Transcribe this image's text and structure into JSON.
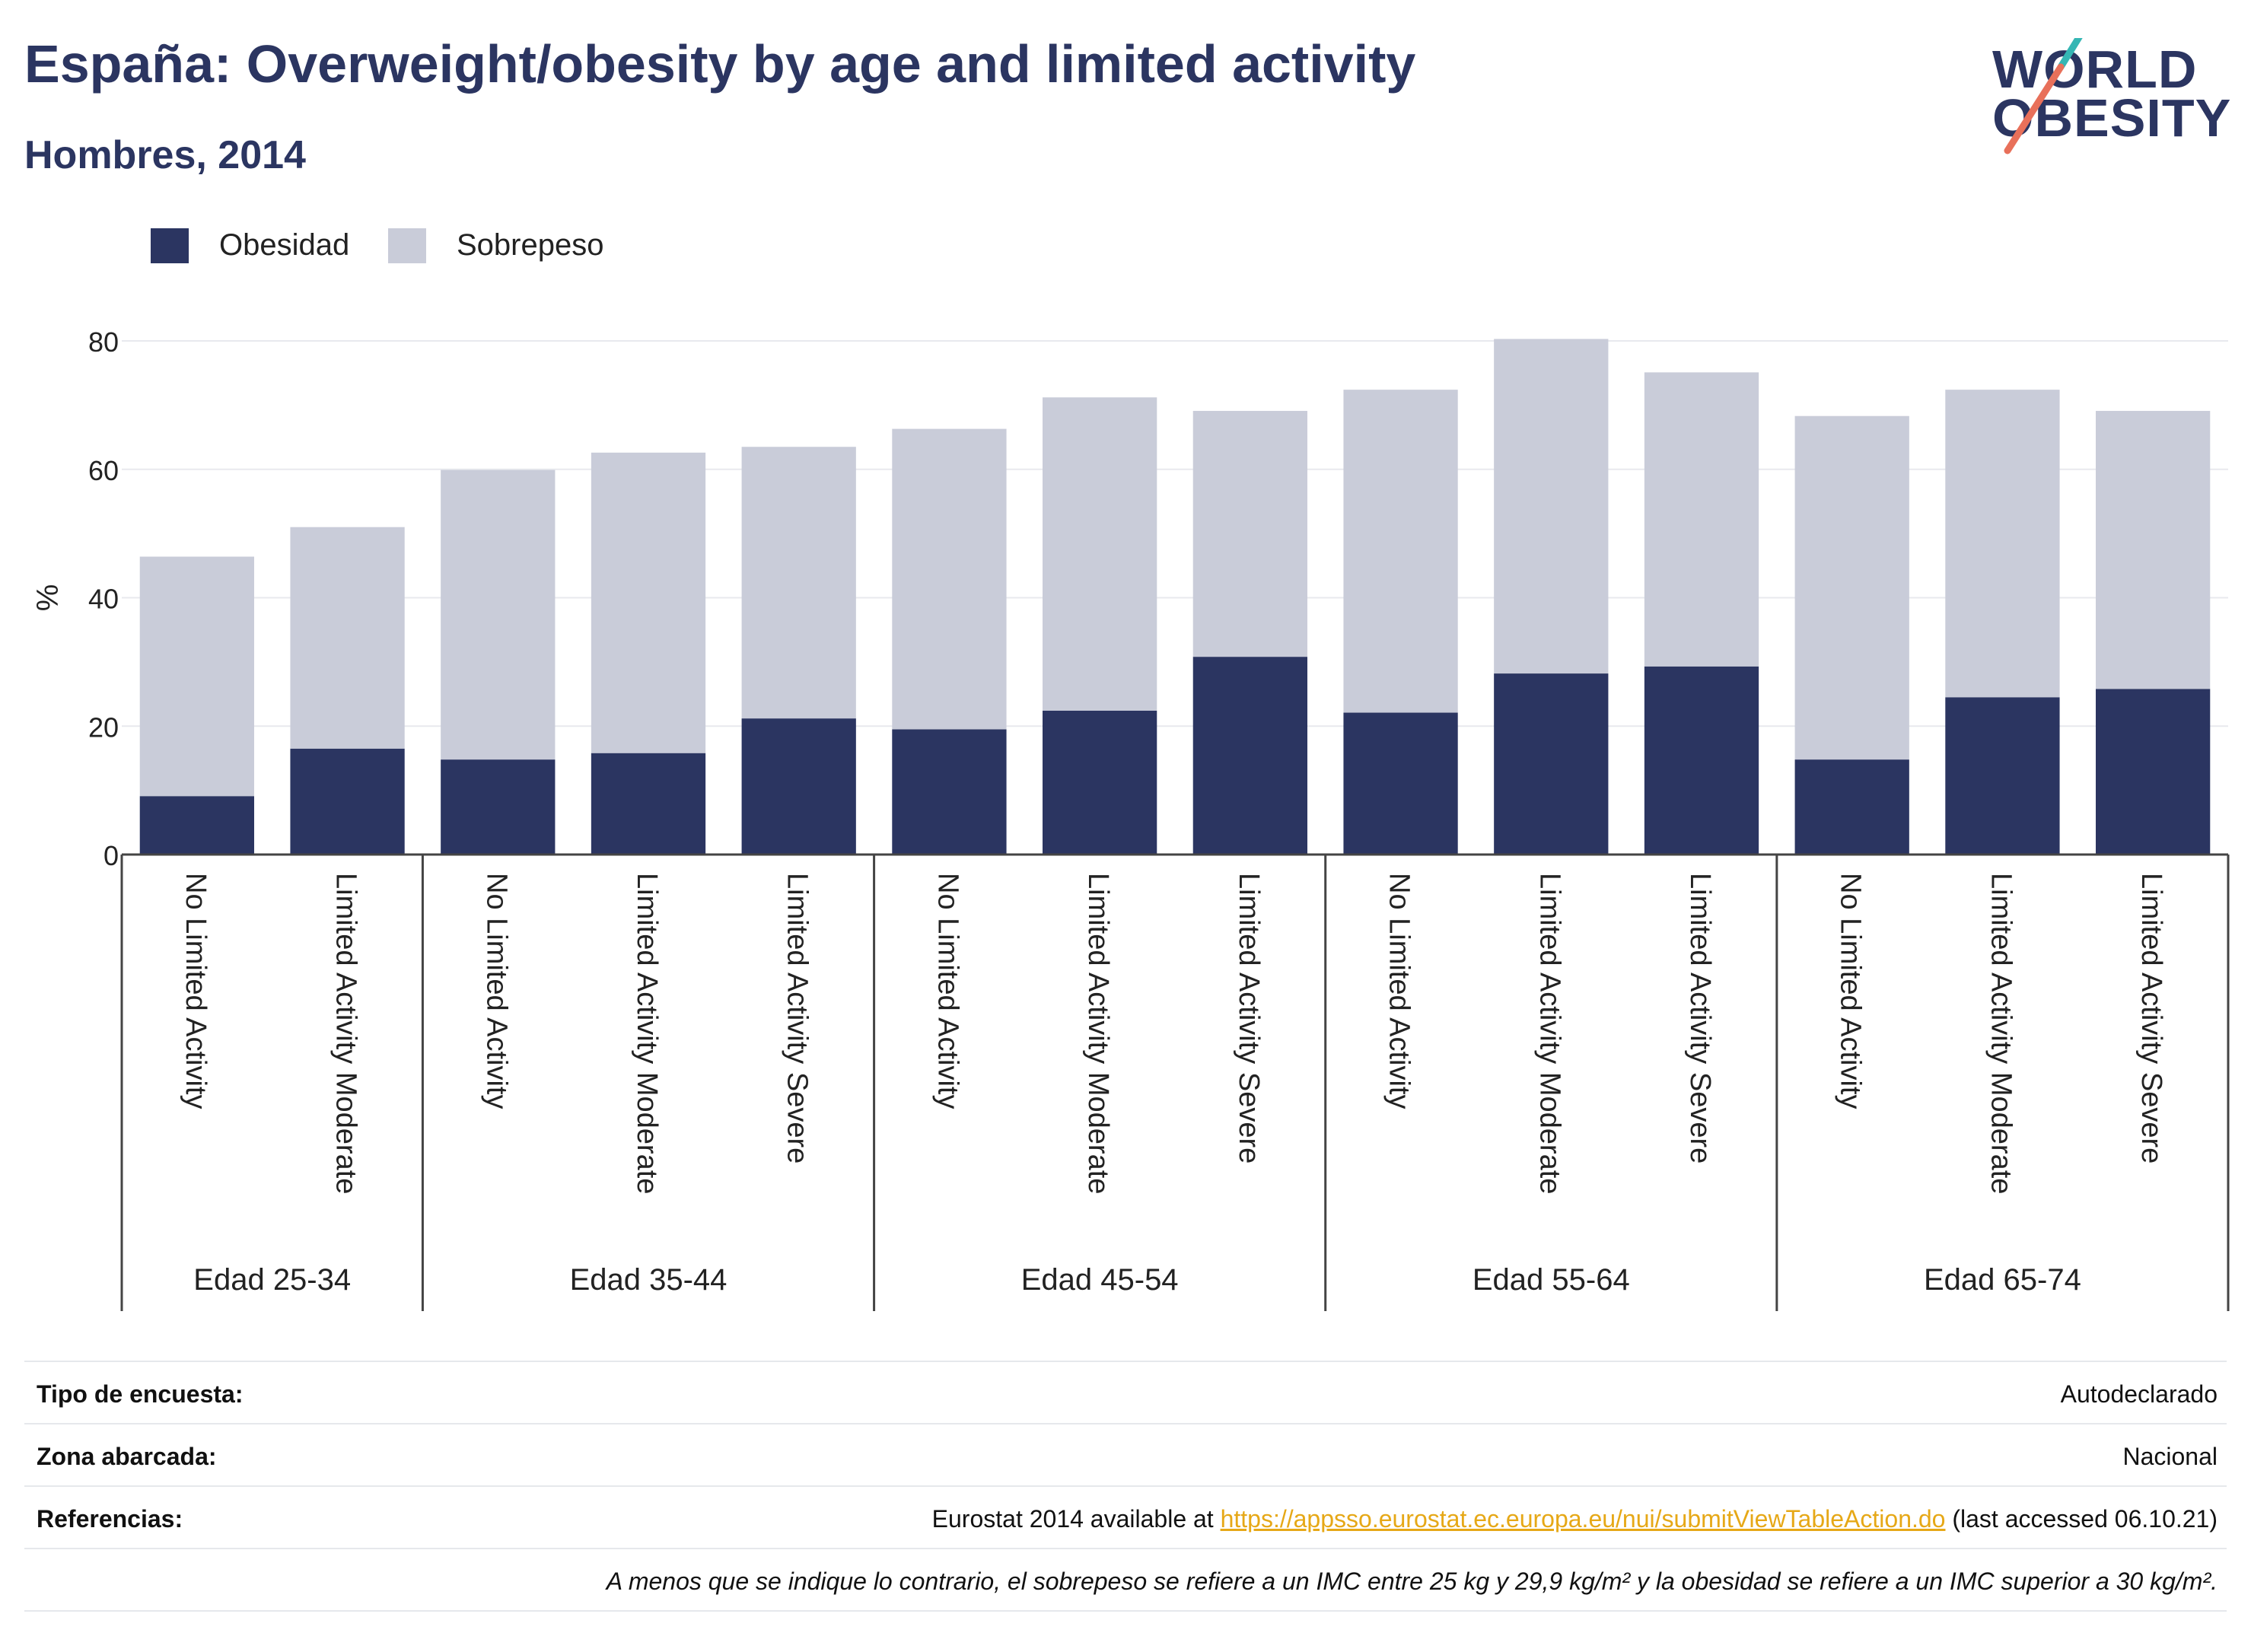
{
  "title": "España: Overweight/obesity by age and limited activity",
  "subtitle": "Hombres, 2014",
  "logo": {
    "line1": "WORLD",
    "line2": "OBESITY",
    "accent_colors": [
      "#35b6b4",
      "#e8705a"
    ]
  },
  "colors": {
    "obesity": "#2b3561",
    "overweight": "#c9ccd9",
    "text": "#2b3561",
    "link": "#e6a817"
  },
  "legend": [
    {
      "label": "Obesidad",
      "color": "#2b3561"
    },
    {
      "label": "Sobrepeso",
      "color": "#c9ccd9"
    }
  ],
  "chart_data": {
    "type": "bar",
    "stacked": true,
    "ylabel": "%",
    "ylim": [
      0,
      80
    ],
    "yticks": [
      0,
      20,
      40,
      60,
      80
    ],
    "grid": true,
    "legend_position": "top-left",
    "groups": [
      {
        "label": "Edad 25-34",
        "count": 2
      },
      {
        "label": "Edad 35-44",
        "count": 3
      },
      {
        "label": "Edad 45-54",
        "count": 3
      },
      {
        "label": "Edad 55-64",
        "count": 3
      },
      {
        "label": "Edad 65-74",
        "count": 3
      }
    ],
    "categories": [
      "No Limited Activity",
      "Limited Activity Moderate",
      "No Limited Activity",
      "Limited Activity Moderate",
      "Limited Activity Severe",
      "No Limited Activity",
      "Limited Activity Moderate",
      "Limited Activity Severe",
      "No Limited Activity",
      "Limited Activity Moderate",
      "Limited Activity Severe",
      "No Limited Activity",
      "Limited Activity Moderate",
      "Limited Activity Severe"
    ],
    "series": [
      {
        "name": "Obesidad",
        "values": [
          9.1,
          16.5,
          14.8,
          15.8,
          21.2,
          19.5,
          22.4,
          30.8,
          22.1,
          28.2,
          29.3,
          14.8,
          24.5,
          25.8
        ]
      },
      {
        "name": "Sobrepeso",
        "values": [
          37.3,
          34.5,
          45.1,
          46.8,
          42.3,
          46.8,
          48.8,
          38.3,
          50.3,
          52.1,
          45.8,
          53.5,
          47.9,
          43.3
        ]
      }
    ]
  },
  "info_table": [
    {
      "label": "Tipo de encuesta:",
      "value": "Autodeclarado"
    },
    {
      "label": "Zona abarcada:",
      "value": "Nacional"
    },
    {
      "label": "Referencias:",
      "value_prefix": "Eurostat 2014 available at ",
      "link": "https://appsso.eurostat.ec.europa.eu/nui/submitViewTableAction.do",
      "value_suffix": " (last accessed 06.10.21)"
    }
  ],
  "note": "A menos que se indique lo contrario, el sobrepeso se refiere a un IMC entre 25 kg y 29,9 kg/m² y la obesidad se refiere a un IMC superior a 30 kg/m²."
}
